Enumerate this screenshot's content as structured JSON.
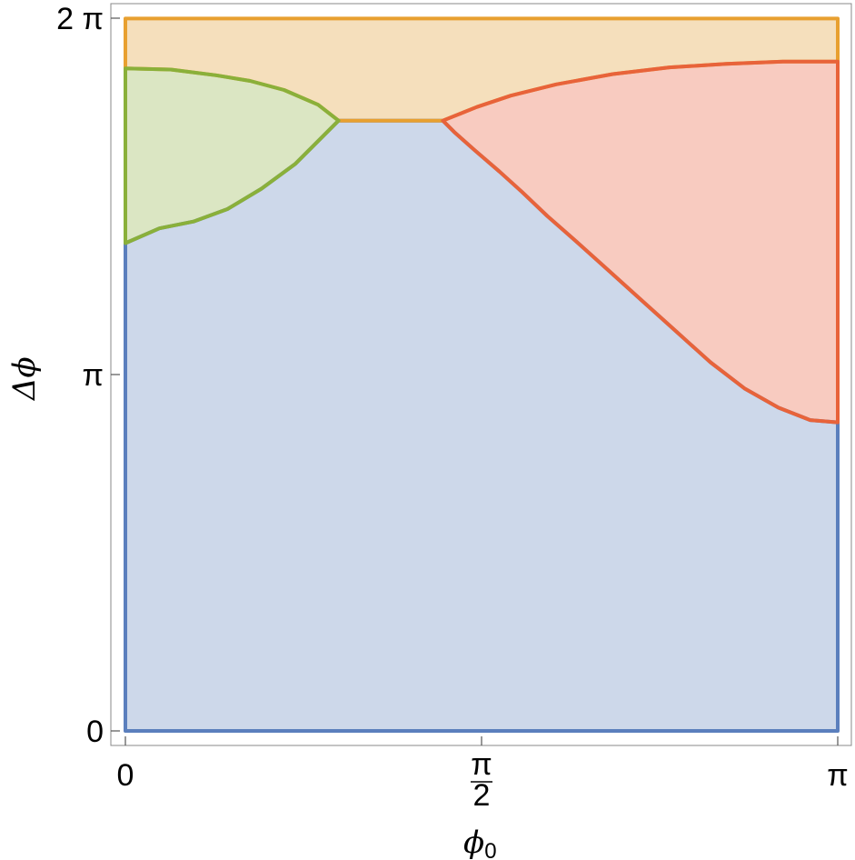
{
  "chart_data": {
    "type": "area",
    "title": "",
    "xlabel": "ϕ",
    "xlabel_subscript": "0",
    "ylabel": "Δϕ",
    "xlim": [
      0,
      3.14159
    ],
    "ylim": [
      0,
      6.28319
    ],
    "x_ticks": [
      {
        "value": 0,
        "label": "0"
      },
      {
        "value": 1.5708,
        "label": "π/2",
        "numerator": "π",
        "denominator": "2"
      },
      {
        "value": 3.14159,
        "label": "π"
      }
    ],
    "y_ticks": [
      {
        "value": 0,
        "label": "0"
      },
      {
        "value": 3.14159,
        "label": "π"
      },
      {
        "value": 6.28319,
        "label": "2 π"
      }
    ],
    "grid": false,
    "legend": "none",
    "regions": [
      {
        "color": "#5b7fbd",
        "fill": "#cdd8ea",
        "boundary": [
          [
            0,
            0
          ],
          [
            3.1416,
            0
          ],
          [
            3.1416,
            2.72
          ],
          [
            3.02,
            2.74
          ],
          [
            2.88,
            2.85
          ],
          [
            2.73,
            3.02
          ],
          [
            2.58,
            3.25
          ],
          [
            2.43,
            3.52
          ],
          [
            2.28,
            3.79
          ],
          [
            2.13,
            4.06
          ],
          [
            1.98,
            4.33
          ],
          [
            1.86,
            4.54
          ],
          [
            1.75,
            4.75
          ],
          [
            1.65,
            4.93
          ],
          [
            1.54,
            5.12
          ],
          [
            1.45,
            5.28
          ],
          [
            1.4,
            5.38
          ],
          [
            0.94,
            5.38
          ],
          [
            0.86,
            5.22
          ],
          [
            0.75,
            5.0
          ],
          [
            0.6,
            4.78
          ],
          [
            0.45,
            4.6
          ],
          [
            0.3,
            4.49
          ],
          [
            0.15,
            4.43
          ],
          [
            0,
            4.3
          ]
        ]
      },
      {
        "color": "#e8a030",
        "fill": "#f5dfbc",
        "boundary": [
          [
            0,
            6.28
          ],
          [
            3.1416,
            6.28
          ],
          [
            3.1416,
            5.9
          ],
          [
            2.9,
            5.9
          ],
          [
            2.65,
            5.88
          ],
          [
            2.4,
            5.85
          ],
          [
            2.15,
            5.79
          ],
          [
            1.9,
            5.7
          ],
          [
            1.7,
            5.6
          ],
          [
            1.55,
            5.5
          ],
          [
            1.4,
            5.38
          ],
          [
            0.94,
            5.38
          ],
          [
            0.85,
            5.52
          ],
          [
            0.7,
            5.65
          ],
          [
            0.55,
            5.73
          ],
          [
            0.4,
            5.78
          ],
          [
            0.2,
            5.83
          ],
          [
            0,
            5.84
          ]
        ]
      },
      {
        "color": "#8ab03a",
        "fill": "#dbe6c3",
        "boundary": [
          [
            0,
            5.84
          ],
          [
            0.2,
            5.83
          ],
          [
            0.4,
            5.78
          ],
          [
            0.55,
            5.73
          ],
          [
            0.7,
            5.65
          ],
          [
            0.85,
            5.52
          ],
          [
            0.94,
            5.38
          ],
          [
            0.86,
            5.22
          ],
          [
            0.75,
            5.0
          ],
          [
            0.6,
            4.78
          ],
          [
            0.45,
            4.6
          ],
          [
            0.3,
            4.49
          ],
          [
            0.15,
            4.43
          ],
          [
            0,
            4.3
          ]
        ]
      },
      {
        "color": "#e8633a",
        "fill": "#f8cbc0",
        "boundary": [
          [
            1.4,
            5.38
          ],
          [
            1.55,
            5.5
          ],
          [
            1.7,
            5.6
          ],
          [
            1.9,
            5.7
          ],
          [
            2.15,
            5.79
          ],
          [
            2.4,
            5.85
          ],
          [
            2.65,
            5.88
          ],
          [
            2.9,
            5.9
          ],
          [
            3.1416,
            5.9
          ],
          [
            3.1416,
            2.72
          ],
          [
            3.02,
            2.74
          ],
          [
            2.88,
            2.85
          ],
          [
            2.73,
            3.02
          ],
          [
            2.58,
            3.25
          ],
          [
            2.43,
            3.52
          ],
          [
            2.28,
            3.79
          ],
          [
            2.13,
            4.06
          ],
          [
            1.98,
            4.33
          ],
          [
            1.86,
            4.54
          ],
          [
            1.75,
            4.75
          ],
          [
            1.65,
            4.93
          ],
          [
            1.54,
            5.12
          ],
          [
            1.45,
            5.28
          ]
        ]
      }
    ]
  }
}
